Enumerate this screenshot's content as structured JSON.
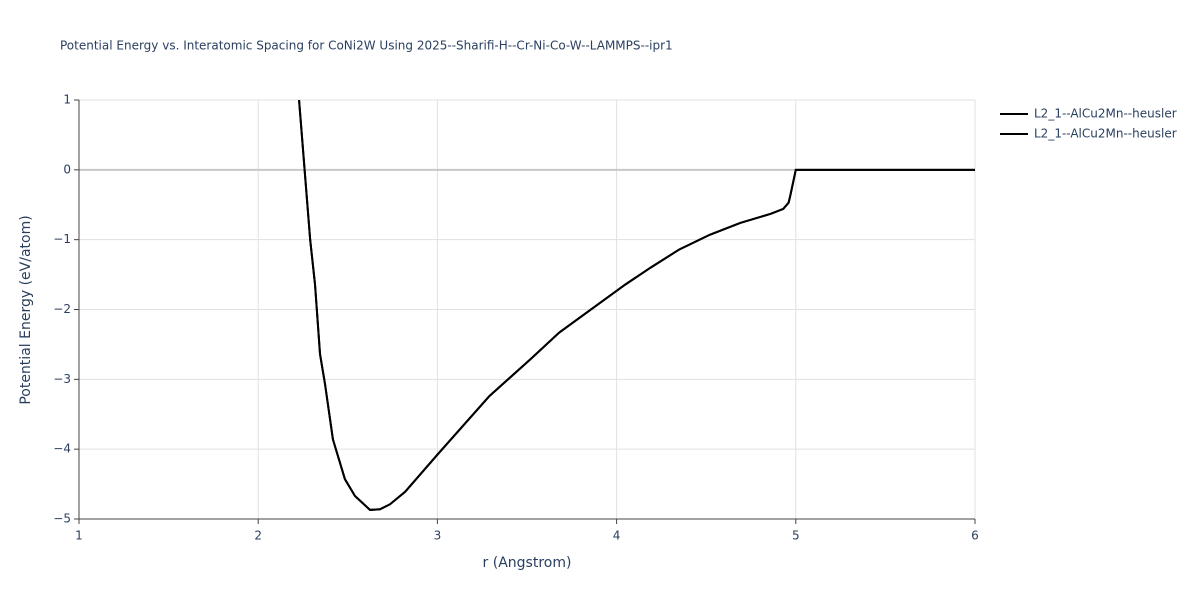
{
  "chart_data": {
    "type": "line",
    "title": "Potential Energy vs. Interatomic Spacing for CoNi2W Using 2025--Sharifi-H--Cr-Ni-Co-W--LAMMPS--ipr1",
    "x_label": "r (Angstrom)",
    "y_label": "Potential Energy (eV/atom)",
    "xlim": [
      1,
      6
    ],
    "xticks": [
      1,
      2,
      3,
      4,
      5,
      6
    ],
    "ylim": [
      -5,
      1
    ],
    "yticks": [
      1,
      0,
      {
        "value": -1,
        "label": "−1"
      },
      {
        "value": -2,
        "label": "−2"
      },
      {
        "value": -3,
        "label": "−3"
      },
      {
        "value": -4,
        "label": "−4"
      },
      {
        "value": -5,
        "label": "−5"
      }
    ],
    "grid": true,
    "x": [
      2.228,
      2.29,
      2.317,
      2.345,
      2.373,
      2.417,
      2.484,
      2.54,
      2.624,
      2.68,
      2.735,
      2.82,
      3.003,
      3.29,
      3.52,
      3.68,
      3.91,
      4.05,
      4.19,
      4.35,
      4.52,
      4.69,
      4.86,
      4.93,
      4.96,
      4.97,
      5.0,
      6.0
    ],
    "series": [
      {
        "name": "L2_1--AlCu2Mn--heusler",
        "color": "#000000",
        "values": [
          1.0,
          -1.0,
          -1.64,
          -2.64,
          -3.07,
          -3.86,
          -4.43,
          -4.67,
          -4.87,
          -4.86,
          -4.79,
          -4.61,
          -4.07,
          -3.24,
          -2.71,
          -2.33,
          -1.9,
          -1.64,
          -1.4,
          -1.14,
          -0.93,
          -0.76,
          -0.63,
          -0.56,
          -0.47,
          -0.36,
          0,
          0
        ]
      },
      {
        "name": "L2_1--AlCu2Mn--heusler",
        "color": "#000000",
        "values": [
          1.0,
          -1.0,
          -1.64,
          -2.64,
          -3.07,
          -3.86,
          -4.43,
          -4.67,
          -4.87,
          -4.86,
          -4.79,
          -4.61,
          -4.07,
          -3.24,
          -2.71,
          -2.33,
          -1.9,
          -1.64,
          -1.4,
          -1.14,
          -0.93,
          -0.76,
          -0.63,
          -0.56,
          -0.47,
          -0.36,
          0,
          0
        ]
      }
    ],
    "legend": "top-right"
  }
}
